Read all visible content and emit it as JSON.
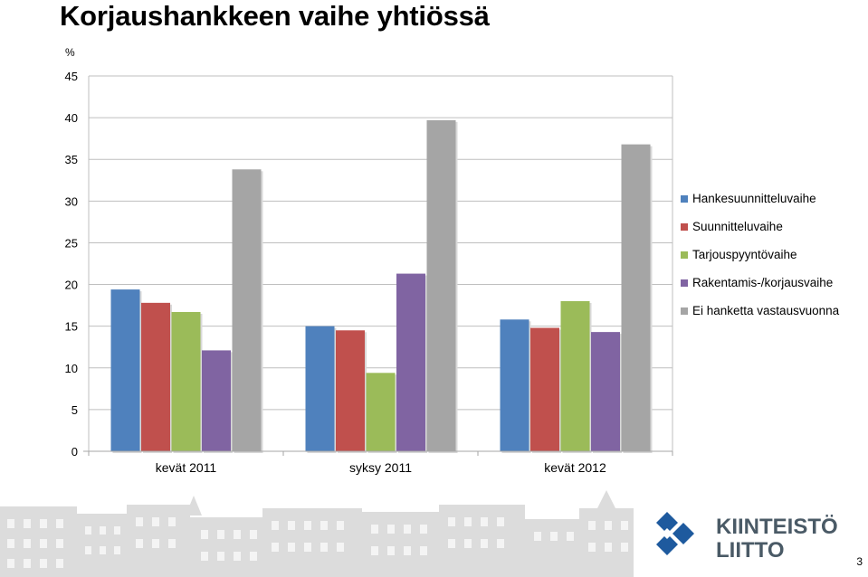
{
  "page": {
    "title": "Korjaushankkeen vaihe yhtiössä",
    "page_number": "3",
    "logo_text_line1": "KIINTEISTÖ",
    "logo_text_line2": "LIITTO"
  },
  "chart_data": {
    "type": "bar",
    "title": "Korjaushankkeen vaihe yhtiössä",
    "ylabel": "%",
    "xlabel": "",
    "ylim": [
      0,
      45
    ],
    "yticks": [
      0,
      5,
      10,
      15,
      20,
      25,
      30,
      35,
      40,
      45
    ],
    "grid": true,
    "legend_position": "right",
    "categories": [
      "kevät 2011",
      "syksy 2011",
      "kevät 2012"
    ],
    "series": [
      {
        "name": "Hankesuunnitteluvaihe",
        "color": "#4F81BD",
        "values": [
          19.4,
          15.0,
          15.8
        ]
      },
      {
        "name": "Suunnitteluvaihe",
        "color": "#C0504D",
        "values": [
          17.8,
          14.5,
          14.8
        ]
      },
      {
        "name": "Tarjouspyyntövaihe",
        "color": "#9BBB59",
        "values": [
          16.7,
          9.4,
          18.0
        ]
      },
      {
        "name": "Rakentamis-/korjausvaihe",
        "color": "#8064A2",
        "values": [
          12.1,
          21.3,
          14.3
        ]
      },
      {
        "name": "Ei hanketta vastausvuonna",
        "color": "#A5A5A5",
        "values": [
          33.8,
          39.7,
          36.8
        ]
      }
    ]
  }
}
